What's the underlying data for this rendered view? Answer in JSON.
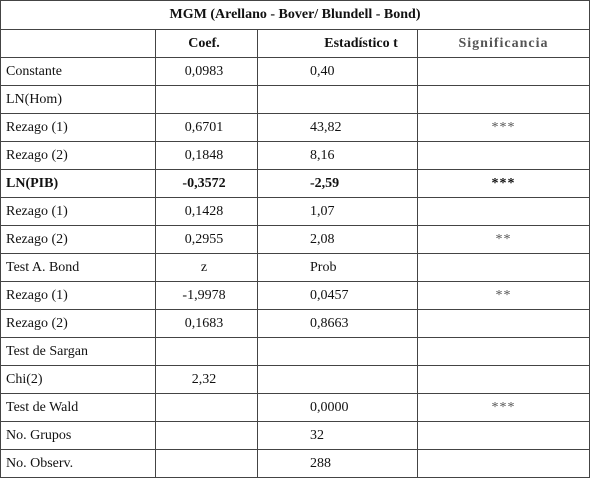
{
  "table": {
    "title": "MGM (Arellano - Bover/ Blundell - Bond)",
    "header": [
      null,
      "Coef.",
      "Estadístico t",
      "Significancia"
    ],
    "rows": [
      [
        "Constante",
        "0,0983",
        "0,40",
        null
      ],
      [
        "LN(Hom)",
        null,
        null,
        null
      ],
      [
        "Rezago (1)",
        "0,6701",
        "43,82",
        "***"
      ],
      [
        "Rezago (2)",
        "0,1848",
        "8,16",
        null
      ],
      [
        "LN(PIB)",
        "-0,3572",
        "-2,59",
        "***"
      ],
      [
        "Rezago (1)",
        "0,1428",
        "1,07",
        null
      ],
      [
        "Rezago (2)",
        "0,2955",
        "2,08",
        "**"
      ],
      [
        "Test A. Bond",
        "z",
        "Prob",
        null
      ],
      [
        "Rezago (1)",
        "-1,9978",
        "0,0457",
        "**"
      ],
      [
        "Rezago (2)",
        "0,1683",
        "0,8663",
        null
      ],
      [
        "Test de Sargan",
        null,
        null,
        null
      ],
      [
        "Chi(2)",
        "2,32",
        null,
        null
      ],
      [
        "Test de Wald",
        null,
        "0,0000",
        "***"
      ],
      [
        "No. Grupos",
        null,
        "32",
        null
      ],
      [
        "No. Observ.",
        null,
        "288",
        null
      ]
    ],
    "bold_rows": [
      4
    ]
  }
}
